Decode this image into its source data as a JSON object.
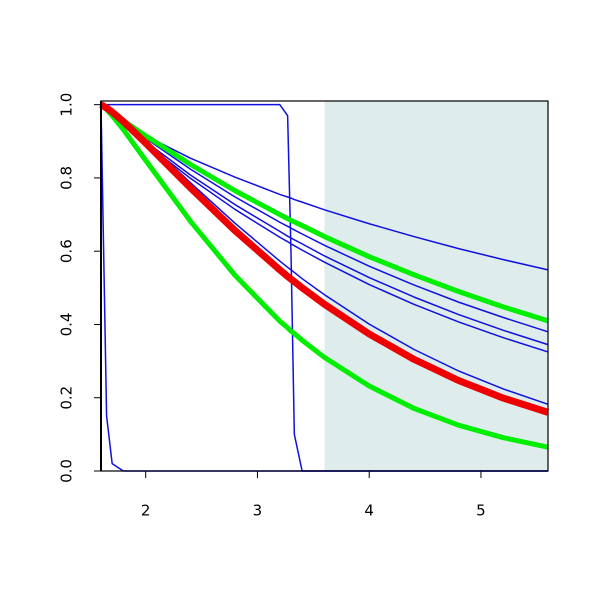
{
  "chart_data": {
    "type": "line",
    "x": [
      1.6,
      1.65,
      1.7,
      1.8,
      2,
      2.4,
      2.8,
      3.2,
      3.27,
      3.3,
      3.33,
      3.4,
      3.6,
      4,
      4.4,
      4.8,
      5.2,
      5.6
    ],
    "xlim": [
      1.6,
      5.6
    ],
    "ylim": [
      0,
      1.01
    ],
    "xticks": [
      2,
      3,
      4,
      5
    ],
    "yticks": [
      {
        "value": 0,
        "label": "0.0"
      },
      0.2,
      0.4,
      0.6,
      0.8,
      {
        "value": 1,
        "label": "1.0"
      }
    ],
    "shade": {
      "xmin": 3.6,
      "xmax": 5.6,
      "color": "#deecec"
    },
    "series": [
      {
        "color": "#1010e0",
        "linewidth": 1.5,
        "values": [
          1,
          0.984,
          0.972,
          0.951,
          0.915,
          0.854,
          0.802,
          0.755,
          0.748,
          0.745,
          0.741,
          0.734,
          0.713,
          0.675,
          0.64,
          0.607,
          0.577,
          0.549
        ]
      },
      {
        "color": "#1010e0",
        "linewidth": 1.5,
        "values": [
          1,
          0.988,
          0.976,
          0.953,
          0.908,
          0.824,
          0.748,
          0.679,
          0.668,
          0.663,
          0.658,
          0.647,
          0.616,
          0.559,
          0.508,
          0.461,
          0.419,
          0.38
        ]
      },
      {
        "color": "#1010e0",
        "linewidth": 1.5,
        "values": [
          1,
          0.987,
          0.974,
          0.948,
          0.899,
          0.808,
          0.727,
          0.654,
          0.641,
          0.636,
          0.631,
          0.62,
          0.587,
          0.528,
          0.475,
          0.427,
          0.384,
          0.345
        ]
      },
      {
        "color": "#1010e0",
        "linewidth": 1.5,
        "values": [
          1,
          0.986,
          0.972,
          0.945,
          0.894,
          0.799,
          0.714,
          0.638,
          0.626,
          0.62,
          0.615,
          0.603,
          0.57,
          0.509,
          0.455,
          0.407,
          0.364,
          0.325
        ]
      },
      {
        "color": "#1010e0",
        "linewidth": 1.5,
        "values": [
          1,
          0.992,
          0.981,
          0.957,
          0.902,
          0.787,
          0.676,
          0.573,
          0.556,
          0.549,
          0.542,
          0.525,
          0.481,
          0.401,
          0.332,
          0.273,
          0.224,
          0.182
        ]
      },
      {
        "color": "#1010e0",
        "linewidth": 1.5,
        "values": [
          1,
          1,
          1,
          1,
          1,
          1,
          1,
          1,
          0.97,
          0.6,
          0.1,
          0,
          0,
          0,
          0,
          0,
          0,
          0
        ]
      },
      {
        "color": "#1010e0",
        "linewidth": 1.5,
        "values": [
          1,
          0.15,
          0.02,
          0,
          0,
          0,
          0,
          0,
          0,
          0,
          0,
          0,
          0,
          0,
          0,
          0,
          0,
          0
        ]
      },
      {
        "color": "#00ee00",
        "linewidth": 5,
        "values": [
          1,
          0.989,
          0.978,
          0.956,
          0.915,
          0.837,
          0.765,
          0.7,
          0.689,
          0.684,
          0.68,
          0.67,
          0.64,
          0.585,
          0.536,
          0.49,
          0.448,
          0.41
        ]
      },
      {
        "color": "#00ee00",
        "linewidth": 5,
        "values": [
          1,
          0.987,
          0.97,
          0.932,
          0.848,
          0.682,
          0.534,
          0.409,
          0.391,
          0.382,
          0.375,
          0.357,
          0.31,
          0.232,
          0.171,
          0.125,
          0.091,
          0.065
        ]
      },
      {
        "color": "#ee0000",
        "linewidth": 7,
        "values": [
          1,
          0.991,
          0.98,
          0.954,
          0.895,
          0.773,
          0.656,
          0.549,
          0.531,
          0.524,
          0.517,
          0.5,
          0.455,
          0.374,
          0.305,
          0.247,
          0.199,
          0.16
        ]
      }
    ]
  }
}
